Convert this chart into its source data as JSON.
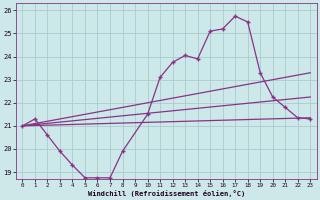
{
  "xlabel": "Windchill (Refroidissement éolien,°C)",
  "bg_color": "#cce8e8",
  "grid_color": "#aacccc",
  "line_color": "#883388",
  "xlim": [
    -0.5,
    23.5
  ],
  "ylim": [
    18.7,
    26.3
  ],
  "yticks": [
    19,
    20,
    21,
    22,
    23,
    24,
    25,
    26
  ],
  "xticks": [
    0,
    1,
    2,
    3,
    4,
    5,
    6,
    7,
    8,
    9,
    10,
    11,
    12,
    13,
    14,
    15,
    16,
    17,
    18,
    19,
    20,
    21,
    22,
    23
  ],
  "series1_x": [
    0,
    1,
    2,
    3,
    4,
    5,
    6,
    7,
    8,
    10,
    11,
    12,
    13,
    14,
    15,
    16,
    17,
    18,
    19,
    20,
    21,
    22,
    23
  ],
  "series1_y": [
    21.0,
    21.3,
    20.6,
    19.9,
    19.3,
    18.75,
    18.75,
    18.75,
    19.9,
    21.5,
    23.1,
    23.75,
    24.05,
    23.9,
    25.1,
    25.2,
    25.75,
    25.5,
    23.3,
    22.25,
    21.8,
    21.35,
    21.3
  ],
  "line1_x": [
    0,
    23
  ],
  "line1_y": [
    21.0,
    21.35
  ],
  "line2_x": [
    0,
    23
  ],
  "line2_y": [
    21.0,
    22.25
  ],
  "line3_x": [
    0,
    23
  ],
  "line3_y": [
    21.0,
    23.3
  ]
}
